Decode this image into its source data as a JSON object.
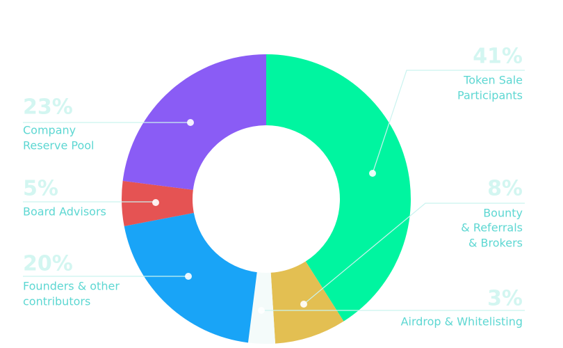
{
  "chart_data": {
    "type": "donut",
    "categories": [
      [
        "Token Sale",
        "Participants"
      ],
      [
        "Bounty",
        "& Referrals",
        "& Brokers"
      ],
      [
        "Airdrop & Whitelisting"
      ],
      [
        "Founders & other",
        "contributors"
      ],
      [
        "Board Advisors"
      ],
      [
        "Company",
        "Reserve Pool"
      ]
    ],
    "values": [
      41,
      8,
      3,
      20,
      5,
      23
    ],
    "value_labels": [
      "41%",
      "8%",
      "3%",
      "20%",
      "5%",
      "23%"
    ],
    "colors": [
      "#00f5a0",
      "#e3bf52",
      "#f4fbfa",
      "#19a4f7",
      "#e55353",
      "#8a5cf5"
    ]
  }
}
